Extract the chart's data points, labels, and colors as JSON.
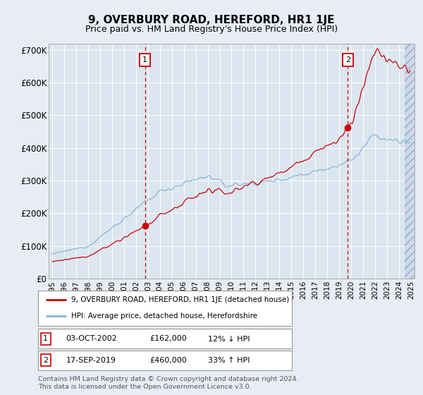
{
  "title": "9, OVERBURY ROAD, HEREFORD, HR1 1JE",
  "subtitle": "Price paid vs. HM Land Registry's House Price Index (HPI)",
  "title_fontsize": 11,
  "subtitle_fontsize": 9,
  "background_color": "#e8edf5",
  "plot_bg_color": "#dce6f0",
  "grid_color": "#ffffff",
  "red_line_color": "#cc0000",
  "blue_line_color": "#88b4d8",
  "ylim": [
    0,
    720000
  ],
  "yticks": [
    0,
    100000,
    200000,
    300000,
    400000,
    500000,
    600000,
    700000
  ],
  "sale1_date": "03-OCT-2002",
  "sale1_price": 162000,
  "sale1_x": 2002.75,
  "sale1_label": "1",
  "sale1_pct": "12% ↓ HPI",
  "sale2_date": "17-SEP-2019",
  "sale2_price": 460000,
  "sale2_x": 2019.71,
  "sale2_label": "2",
  "sale2_pct": "33% ↑ HPI",
  "legend_line1": "9, OVERBURY ROAD, HEREFORD, HR1 1JE (detached house)",
  "legend_line2": "HPI: Average price, detached house, Herefordshire",
  "footnote": "Contains HM Land Registry data © Crown copyright and database right 2024.\nThis data is licensed under the Open Government Licence v3.0."
}
